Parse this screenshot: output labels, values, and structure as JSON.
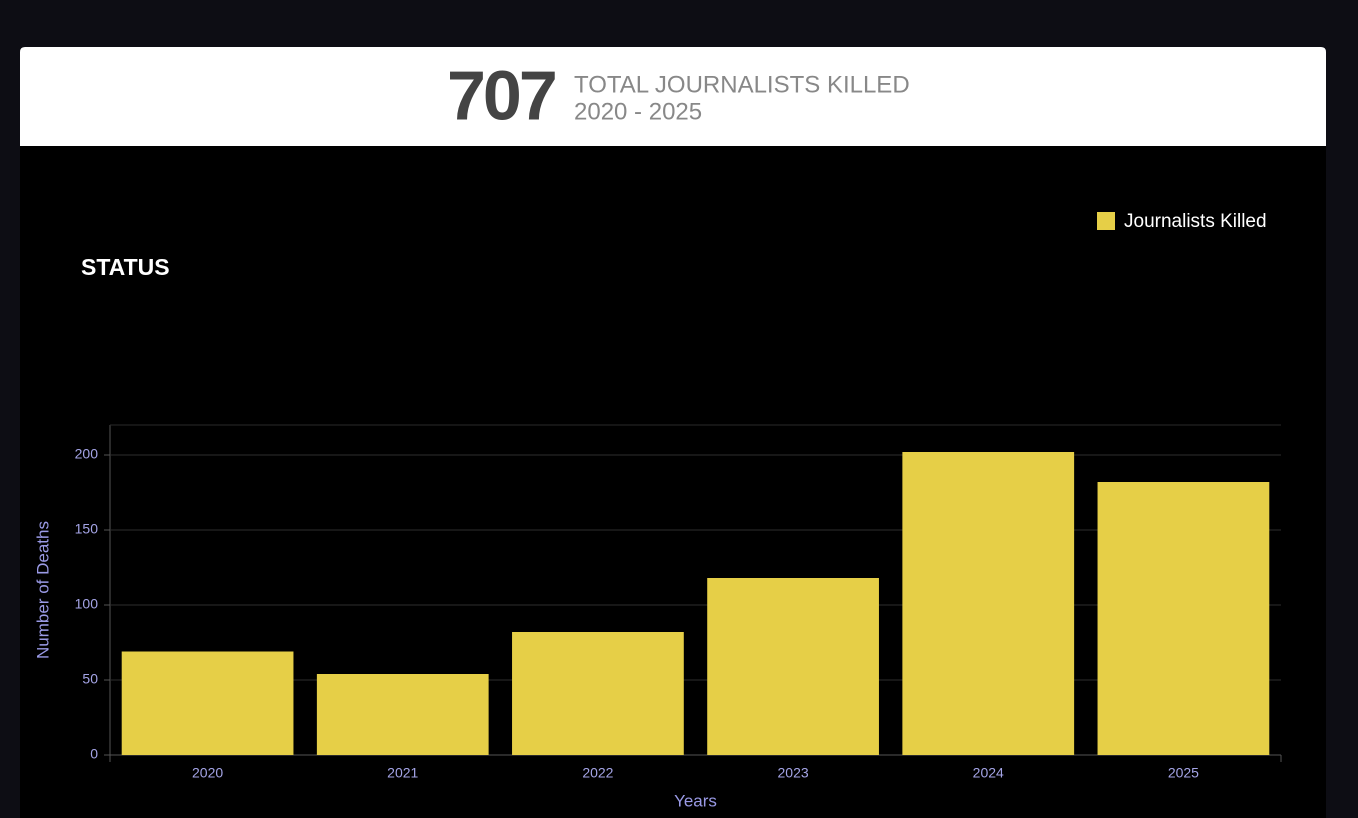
{
  "header": {
    "total": 707,
    "label": "TOTAL JOURNALISTS KILLED",
    "period": "2020 - 2025"
  },
  "section_title": "STATUS",
  "chart_data": {
    "type": "bar",
    "categories": [
      "2020",
      "2021",
      "2022",
      "2023",
      "2024",
      "2025"
    ],
    "series": [
      {
        "name": "Journalists Killed",
        "color": "#e6cf47",
        "values": [
          69,
          54,
          82,
          118,
          202,
          182
        ]
      }
    ],
    "xlabel": "Years",
    "ylabel": "Number of Deaths",
    "ylim": [
      0,
      220
    ],
    "yticks": [
      0,
      50,
      100,
      150,
      200
    ],
    "grid": true,
    "legend": "top-right"
  }
}
